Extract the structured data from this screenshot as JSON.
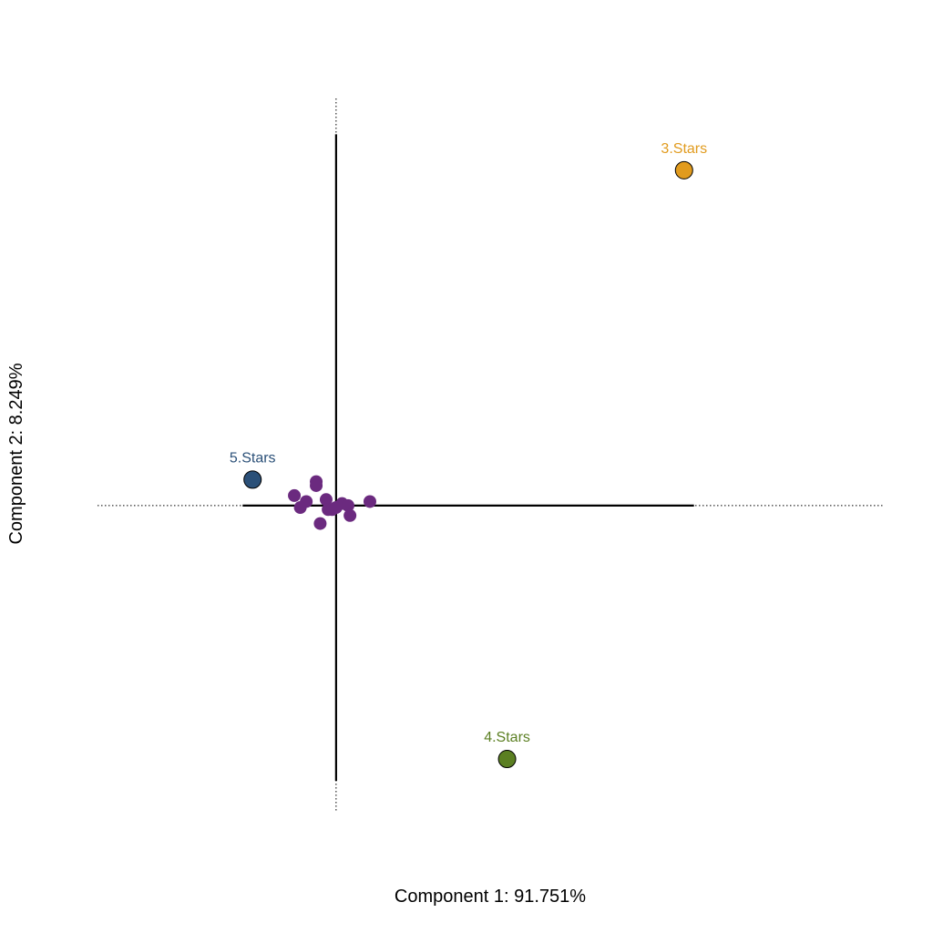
{
  "chart_data": {
    "type": "scatter",
    "xlabel": "Component 1: 91.751%",
    "ylabel": "Component 2: 8.249%",
    "xlim": [
      -1.2,
      2.75
    ],
    "ylim": [
      -1.53,
      2.04
    ],
    "axes_through_origin": true,
    "grid": false,
    "colors": {
      "row_points": "#6b2a7f",
      "3.Stars": "#e19b1e",
      "4.Stars": "#5b7f22",
      "5.Stars": "#2b5078"
    },
    "labeled_points": [
      {
        "label": "3.Stars",
        "x": 1.75,
        "y": 1.68
      },
      {
        "label": "4.Stars",
        "x": 0.86,
        "y": -1.27
      },
      {
        "label": "5.Stars",
        "x": -0.42,
        "y": 0.13
      }
    ],
    "row_points": [
      {
        "x": -0.1,
        "y": 0.12
      },
      {
        "x": -0.1,
        "y": 0.1
      },
      {
        "x": -0.21,
        "y": 0.05
      },
      {
        "x": -0.15,
        "y": 0.02
      },
      {
        "x": -0.18,
        "y": -0.01
      },
      {
        "x": -0.05,
        "y": 0.03
      },
      {
        "x": -0.04,
        "y": -0.02
      },
      {
        "x": -0.02,
        "y": -0.02
      },
      {
        "x": 0.0,
        "y": -0.01
      },
      {
        "x": 0.03,
        "y": 0.01
      },
      {
        "x": 0.06,
        "y": 0.0
      },
      {
        "x": 0.07,
        "y": -0.05
      },
      {
        "x": -0.08,
        "y": -0.09
      },
      {
        "x": 0.17,
        "y": 0.02
      }
    ]
  }
}
